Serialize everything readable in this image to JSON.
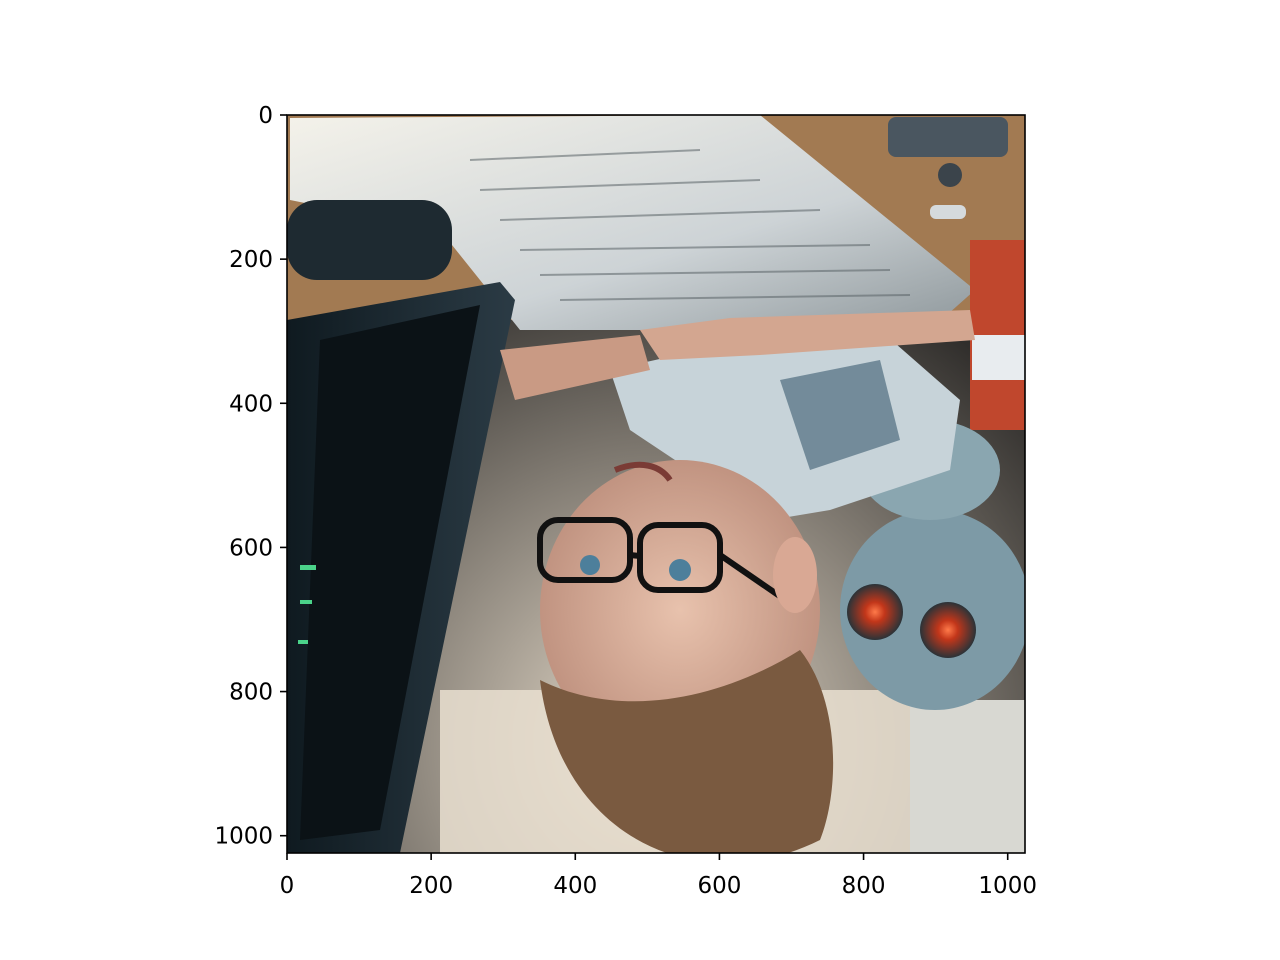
{
  "figure": {
    "background": "#ffffff",
    "image": {
      "subject": "upside-down illustration of a boy with glasses at a computer desk with papers and a robot",
      "orientation": "upside-down"
    }
  },
  "chart_data": {
    "type": "image",
    "xlim": [
      0,
      1024
    ],
    "ylim": [
      1024,
      0
    ],
    "x_ticks": [
      {
        "value": 0,
        "label": "0"
      },
      {
        "value": 200,
        "label": "200"
      },
      {
        "value": 400,
        "label": "400"
      },
      {
        "value": 600,
        "label": "600"
      },
      {
        "value": 800,
        "label": "800"
      },
      {
        "value": 1000,
        "label": "1000"
      }
    ],
    "y_ticks": [
      {
        "value": 0,
        "label": "0"
      },
      {
        "value": 200,
        "label": "200"
      },
      {
        "value": 400,
        "label": "400"
      },
      {
        "value": 600,
        "label": "600"
      },
      {
        "value": 800,
        "label": "800"
      },
      {
        "value": 1000,
        "label": "1000"
      }
    ],
    "y_inverted": true,
    "grid": false,
    "title": "",
    "xlabel": "",
    "ylabel": ""
  }
}
